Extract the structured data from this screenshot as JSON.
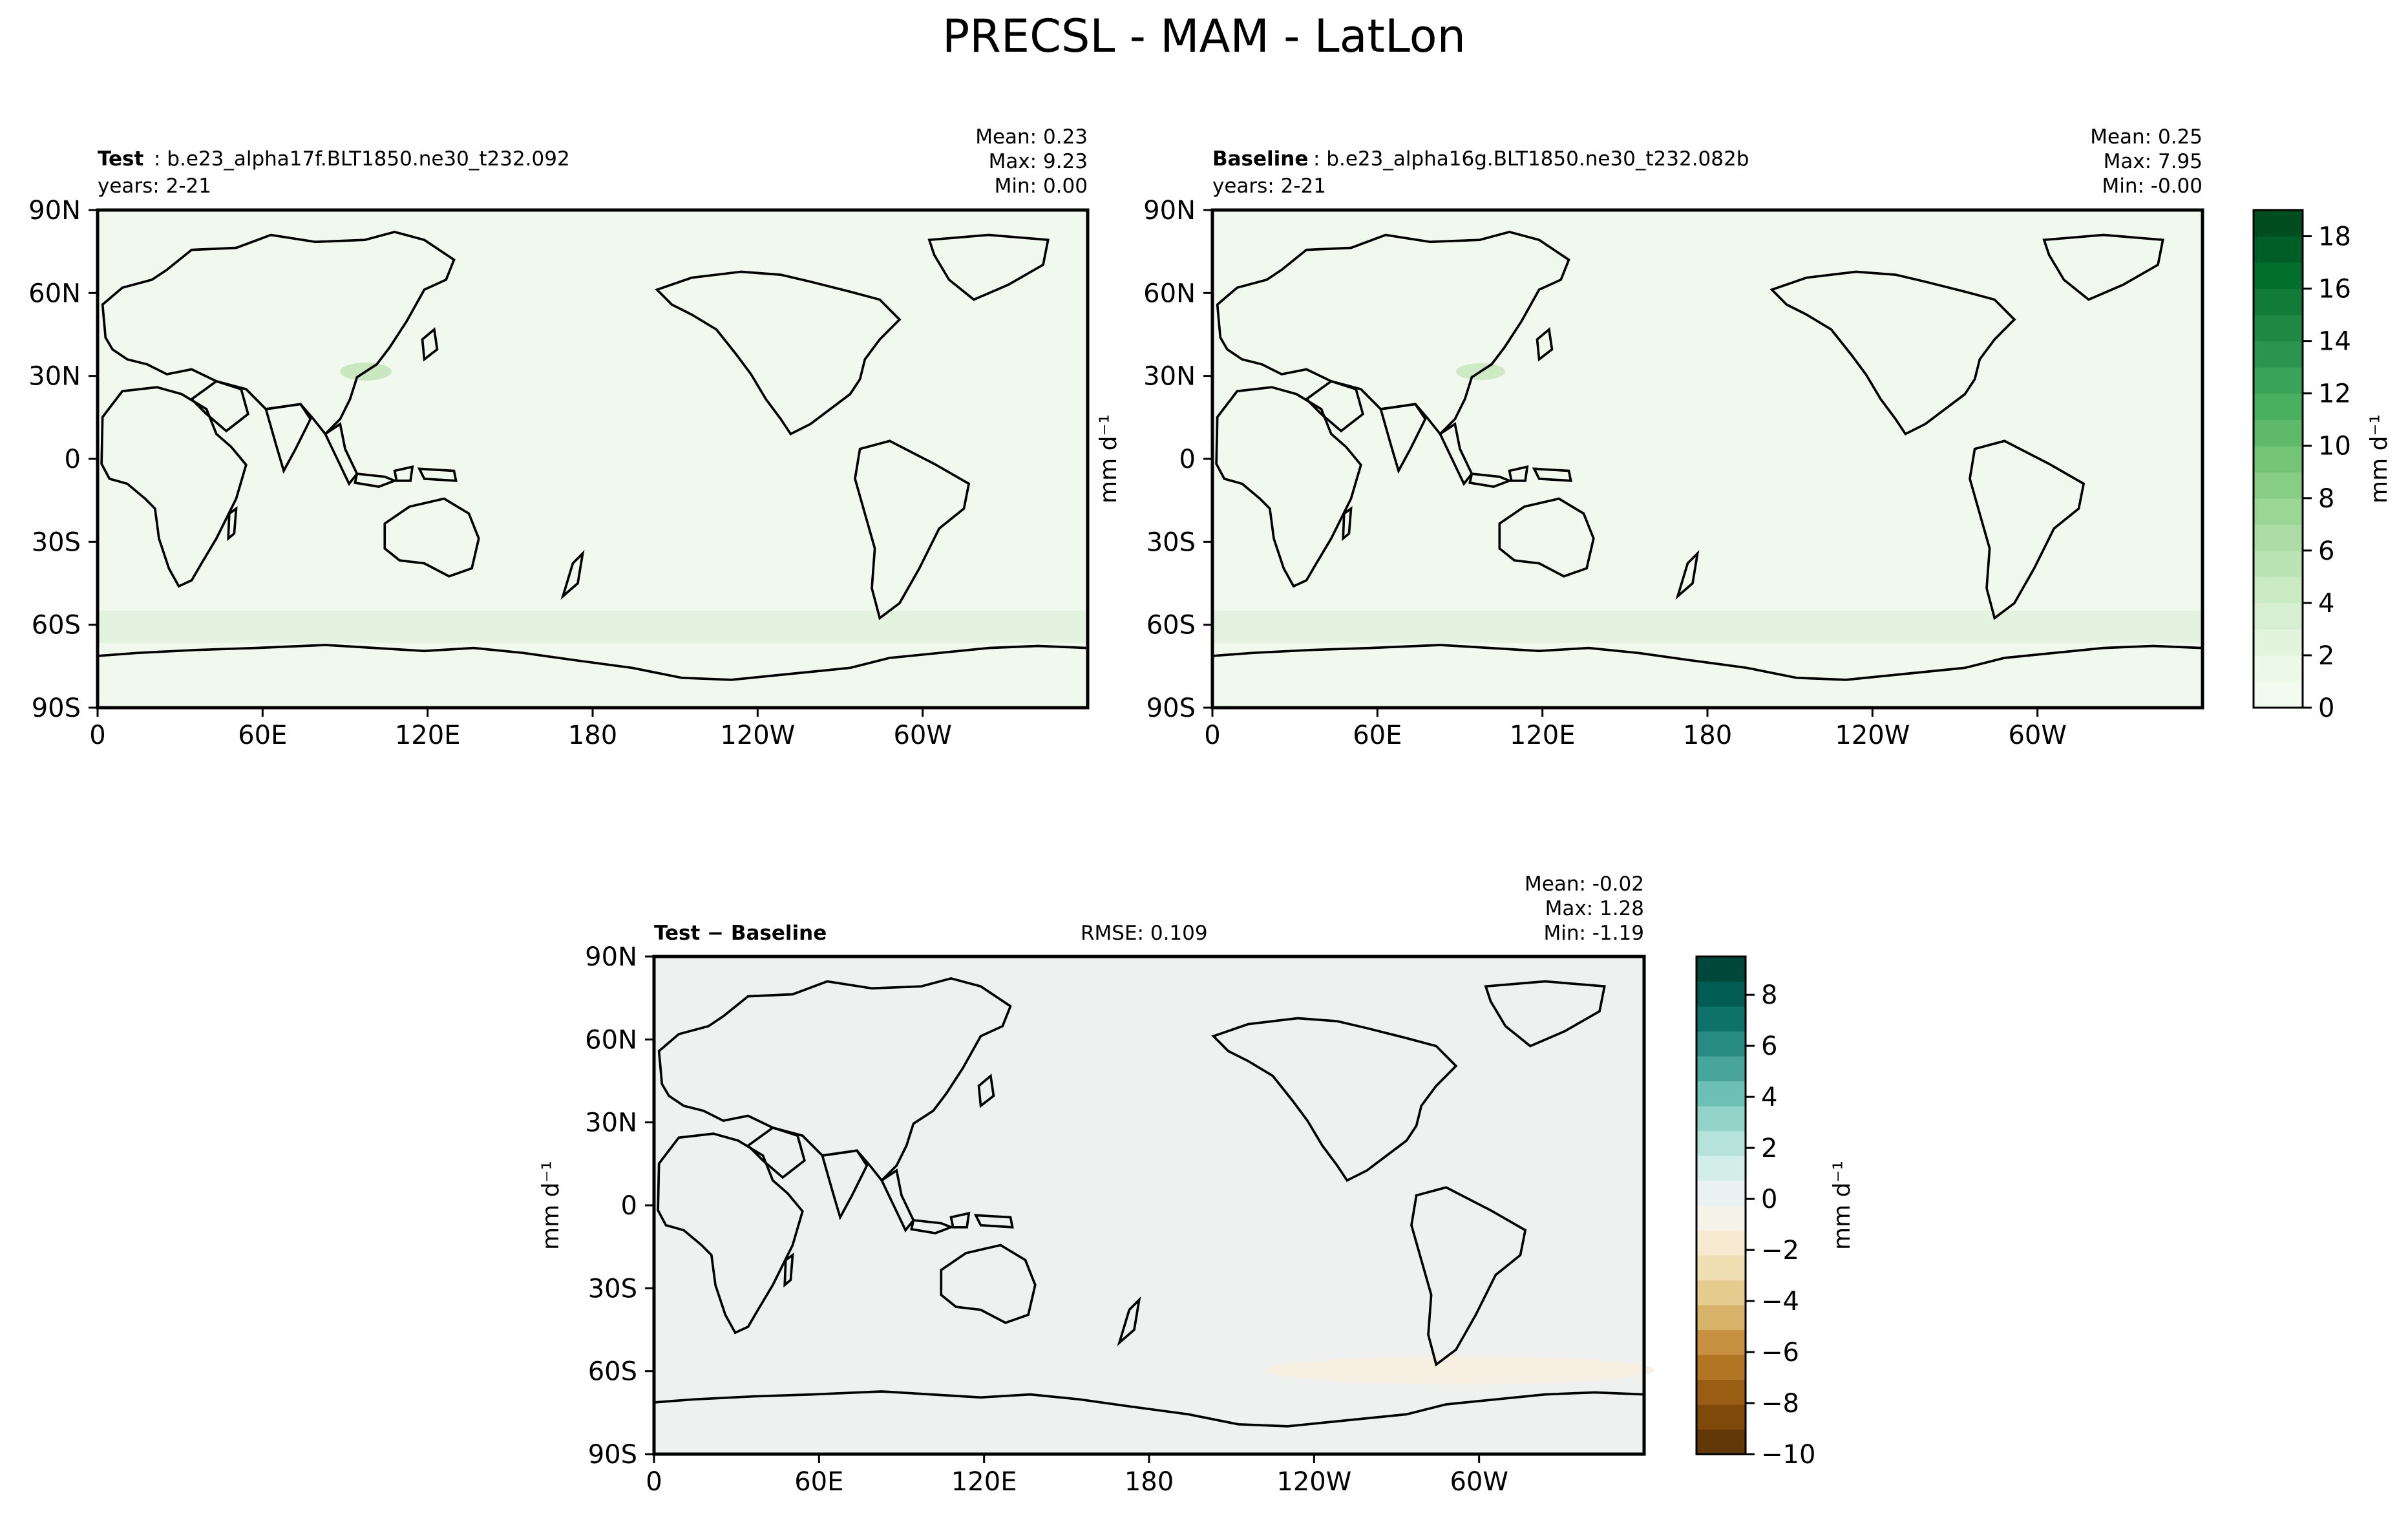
{
  "figure": {
    "title": "PRECSL - MAM - LatLon"
  },
  "colors": {
    "frame": "#000000",
    "coast": "#000000",
    "green_ramp": [
      "#f7fcf5",
      "#e5f5e0",
      "#c7e9c0",
      "#a1d99b",
      "#74c476",
      "#41ab5d",
      "#238b45",
      "#006d2c",
      "#00441b"
    ],
    "diff_ramp": [
      "#543005",
      "#8c510a",
      "#bf812d",
      "#dfc27d",
      "#f6e8c3",
      "#f5f5f5",
      "#c7eae5",
      "#80cdc1",
      "#35978f",
      "#01665e",
      "#003c30"
    ]
  },
  "panels": {
    "test": {
      "label_bold": "Test",
      "label_rest": ": b.e23_alpha17f.BLT1850.ne30_t232.092",
      "years": "years: 2-21",
      "mean": "Mean:  0.23",
      "max": "Max:  9.23",
      "min": "Min:  0.00",
      "ylabel": "mm d⁻¹"
    },
    "baseline": {
      "label_bold": "Baseline",
      "label_rest": ": b.e23_alpha16g.BLT1850.ne30_t232.082b",
      "years": "years: 2-21",
      "mean": "Mean:  0.25",
      "max": "Max:  7.95",
      "min": "Min: -0.00"
    },
    "diff": {
      "label_bold": "Test − Baseline",
      "rmse": "RMSE: 0.109",
      "mean": "Mean: -0.02",
      "max": "Max:  1.28",
      "min": "Min: -1.19",
      "ylabel": "mm d⁻¹"
    }
  },
  "colorbars": {
    "main": {
      "label": "mm d⁻¹",
      "ticks": [
        "0",
        "2",
        "4",
        "6",
        "8",
        "10",
        "12",
        "14",
        "16",
        "18"
      ],
      "range": [
        0,
        19
      ]
    },
    "diff": {
      "label": "mm d⁻¹",
      "ticks": [
        "−10",
        "−8",
        "−6",
        "−4",
        "−2",
        "0",
        "2",
        "4",
        "6",
        "8"
      ],
      "range": [
        -10,
        9.5
      ]
    }
  },
  "chart_data": [
    {
      "type": "heatmap",
      "title": "Test",
      "projection": "lat-lon",
      "x_tick_labels": [
        "0",
        "60E",
        "120E",
        "180",
        "120W",
        "60W"
      ],
      "y_tick_labels": [
        "90N",
        "60N",
        "30N",
        "0",
        "30S",
        "60S",
        "90S"
      ],
      "stats": {
        "mean": 0.23,
        "max": 9.23,
        "min": 0.0
      },
      "units": "mm d⁻¹",
      "colormap": "Greens",
      "levels": [
        0,
        19
      ]
    },
    {
      "type": "heatmap",
      "title": "Baseline",
      "projection": "lat-lon",
      "x_tick_labels": [
        "0",
        "60E",
        "120E",
        "180",
        "120W",
        "60W"
      ],
      "y_tick_labels": [
        "90N",
        "60N",
        "30N",
        "0",
        "30S",
        "60S",
        "90S"
      ],
      "stats": {
        "mean": 0.25,
        "max": 7.95,
        "min": -0.0
      },
      "units": "mm d⁻¹",
      "colormap": "Greens",
      "levels": [
        0,
        19
      ]
    },
    {
      "type": "heatmap",
      "title": "Test − Baseline",
      "projection": "lat-lon",
      "x_tick_labels": [
        "0",
        "60E",
        "120E",
        "180",
        "120W",
        "60W"
      ],
      "y_tick_labels": [
        "90N",
        "60N",
        "30N",
        "0",
        "30S",
        "60S",
        "90S"
      ],
      "stats": {
        "mean": -0.02,
        "max": 1.28,
        "min": -1.19,
        "rmse": 0.109
      },
      "units": "mm d⁻¹",
      "colormap": "BrBG",
      "levels": [
        -10,
        9.5
      ]
    }
  ]
}
